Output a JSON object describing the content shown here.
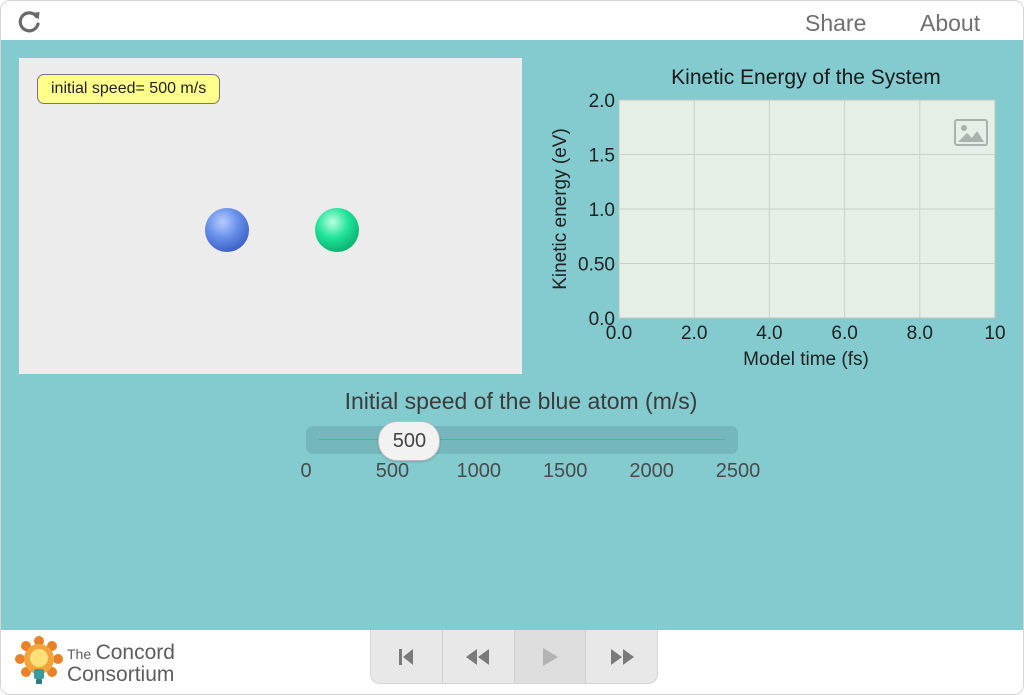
{
  "header": {
    "reload_icon": "reload-icon",
    "share_label": "Share",
    "about_label": "About"
  },
  "model": {
    "speed_label": "initial speed= 500 m/s",
    "atoms": [
      {
        "name": "blue-atom",
        "color": "#4a74dc"
      },
      {
        "name": "green-atom",
        "color": "#12d487"
      }
    ]
  },
  "graph": {
    "title": "Kinetic Energy of the System",
    "xlabel": "Model time (fs)",
    "ylabel": "Kinetic energy (eV)",
    "image_icon": "image-icon"
  },
  "chart_data": {
    "type": "line",
    "title": "Kinetic Energy of the System",
    "xlabel": "Model time (fs)",
    "ylabel": "Kinetic energy (eV)",
    "xlim": [
      0,
      10
    ],
    "ylim": [
      0,
      2
    ],
    "x_ticks": [
      "0.0",
      "2.0",
      "4.0",
      "6.0",
      "8.0",
      "10"
    ],
    "y_ticks": [
      "0.0",
      "0.50",
      "1.0",
      "1.5",
      "2.0"
    ],
    "grid": true,
    "series": [
      {
        "values": [],
        "color": "#3a6fb0"
      }
    ]
  },
  "slider": {
    "title": "Initial speed of the blue atom (m/s)",
    "value": 500,
    "value_label": "500",
    "min": 0,
    "max": 2500,
    "ticks": [
      "0",
      "500",
      "1000",
      "1500",
      "2000",
      "2500"
    ]
  },
  "footer": {
    "logo_the": "The",
    "logo_line1": "Concord",
    "logo_line2": "Consortium",
    "controls": [
      "reset-icon",
      "step-back-icon",
      "play-icon",
      "step-forward-icon"
    ]
  },
  "colors": {
    "background": "#84cbd0",
    "plot_bg": "#e5efe6",
    "label_bg": "#ffff8c"
  }
}
